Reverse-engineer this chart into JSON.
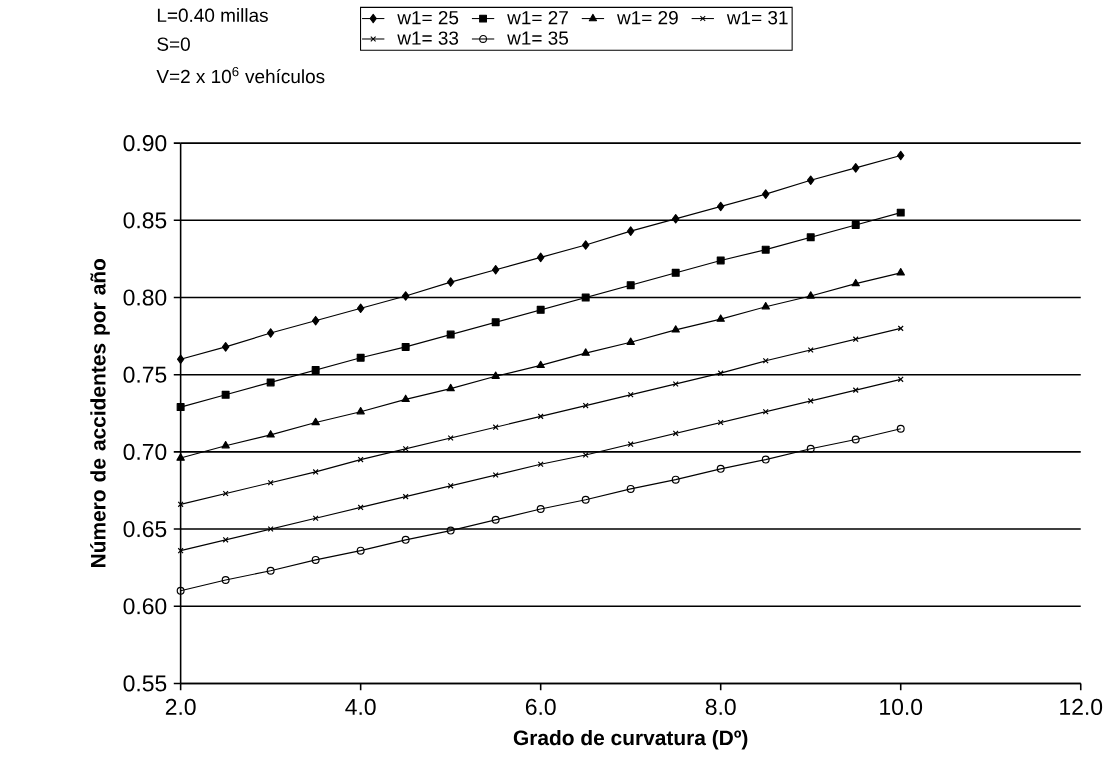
{
  "chart_data": {
    "type": "line",
    "xlabel": "Grado de curvatura (Dº)",
    "ylabel": "Número de accidentes por año",
    "annotations": [
      "L=0.40 millas",
      "S=0",
      "V=2 x 10$^{6}$ vehículos"
    ],
    "x": [
      2,
      2.5,
      3,
      3.5,
      4,
      4.5,
      5,
      5.5,
      6,
      6.5,
      7,
      7.5,
      8,
      8.5,
      9,
      9.5,
      10
    ],
    "series": [
      {
        "name": "w1= 25",
        "color": "#000000",
        "marker": "diamond",
        "values": [
          0.76,
          0.768,
          0.777,
          0.785,
          0.793,
          0.801,
          0.81,
          0.818,
          0.826,
          0.834,
          0.843,
          0.851,
          0.859,
          0.867,
          0.876,
          0.884,
          0.892
        ]
      },
      {
        "name": "w1= 27",
        "color": "#000000",
        "marker": "square",
        "values": [
          0.729,
          0.737,
          0.745,
          0.753,
          0.761,
          0.768,
          0.776,
          0.784,
          0.792,
          0.8,
          0.808,
          0.816,
          0.824,
          0.831,
          0.839,
          0.847,
          0.855
        ]
      },
      {
        "name": "w1= 29",
        "color": "#000000",
        "marker": "triangle",
        "values": [
          0.696,
          0.704,
          0.711,
          0.719,
          0.726,
          0.734,
          0.741,
          0.749,
          0.756,
          0.764,
          0.771,
          0.779,
          0.786,
          0.794,
          0.801,
          0.809,
          0.816
        ]
      },
      {
        "name": "w1= 31",
        "color": "#000000",
        "marker": "cross",
        "values": [
          0.666,
          0.673,
          0.68,
          0.687,
          0.695,
          0.702,
          0.709,
          0.716,
          0.723,
          0.73,
          0.737,
          0.744,
          0.751,
          0.759,
          0.766,
          0.773,
          0.78
        ]
      },
      {
        "name": "w1= 33",
        "color": "#000000",
        "marker": "cross",
        "values": [
          0.636,
          0.643,
          0.65,
          0.657,
          0.664,
          0.671,
          0.678,
          0.685,
          0.692,
          0.698,
          0.705,
          0.712,
          0.719,
          0.726,
          0.733,
          0.74,
          0.747
        ]
      },
      {
        "name": "w1= 35",
        "color": "#000000",
        "marker": "circle",
        "values": [
          0.61,
          0.617,
          0.623,
          0.63,
          0.636,
          0.643,
          0.649,
          0.656,
          0.663,
          0.669,
          0.676,
          0.682,
          0.689,
          0.695,
          0.702,
          0.708,
          0.715
        ]
      }
    ],
    "xlim": [
      2,
      12
    ],
    "xticks": [
      {
        "value": 2,
        "label": "2.0"
      },
      {
        "value": 4,
        "label": "4.0"
      },
      {
        "value": 6,
        "label": "6.0"
      },
      {
        "value": 8,
        "label": "8.0"
      },
      {
        "value": 10,
        "label": "10.0"
      },
      {
        "value": 12,
        "label": "12.0"
      }
    ],
    "ylim": [
      0.55,
      0.9
    ],
    "yticks": [
      0.55,
      {
        "value": 0.6,
        "label": "0.60"
      },
      0.65,
      {
        "value": 0.7,
        "label": "0.70"
      },
      0.75,
      {
        "value": 0.8,
        "label": "0.80"
      },
      0.85,
      {
        "value": 0.9,
        "label": "0.90"
      }
    ],
    "grid": "y",
    "legend": "top",
    "line_style": "solid"
  }
}
